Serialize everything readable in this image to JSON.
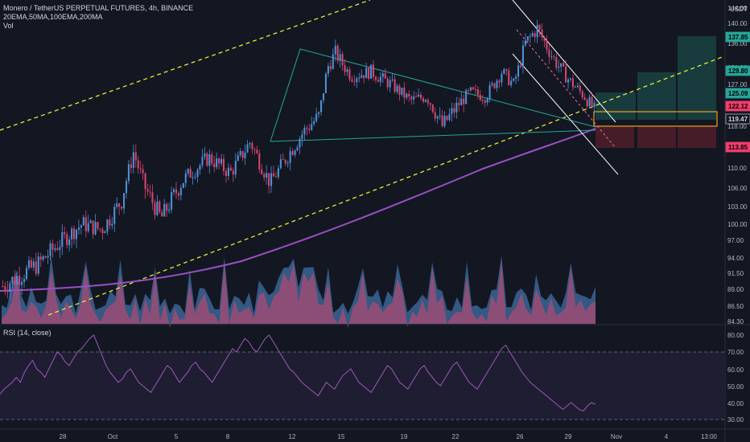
{
  "header": {
    "title": "Monero / TetherUS PERPETUAL FUTURES, 4h, BINANCE",
    "indicators": "20EMA,50MA,100EMA,200MA",
    "volume_label": "Vol",
    "rsi_label": "RSI (14, close)",
    "currency": "USDT"
  },
  "colors": {
    "background": "#131722",
    "up": "#4f8fd6",
    "down": "#d6456e",
    "ma": "#9c4fc6",
    "channel_dashed": "#e8e83a",
    "triangle": "#26a69a",
    "descending_channel": "#ffffff",
    "rsi_line": "#9d5bb8",
    "target_box": "#f2a01c",
    "profit_zone": "#1e5b56",
    "loss_zone": "#5e1f2c"
  },
  "chart_data": [
    {
      "type": "candlestick",
      "name": "price",
      "y_ticks": [
        "144.00",
        "140.00",
        "136.00",
        "131.00",
        "127.00",
        "122.00",
        "118.00",
        "114.00",
        "110.00",
        "106.00",
        "103.00",
        "100.00",
        "97.00",
        "94.00",
        "91.50",
        "89.00",
        "86.50",
        "84.30"
      ],
      "x_ticks": [
        "28",
        "Oct",
        "5",
        "8",
        "12",
        "15",
        "19",
        "22",
        "26",
        "29",
        "Nov",
        "4",
        "13:00"
      ],
      "price_tags": [
        {
          "label": "137.85",
          "color": "#26a69a"
        },
        {
          "label": "129.80",
          "color": "#26a69a"
        },
        {
          "label": "125.09",
          "color": "#26a69a"
        },
        {
          "label": "122.12",
          "color": "#f23d6e"
        },
        {
          "label": "119.47",
          "color": "#131722"
        },
        {
          "label": "113.85",
          "color": "#f23d6e"
        }
      ],
      "ohlc_range": {
        "start_close": 89.5,
        "peak_1": 135.5,
        "peak_2": 140.2,
        "end_close": 119.47
      }
    },
    {
      "type": "area",
      "name": "Vol"
    },
    {
      "type": "line",
      "name": "RSI (14, close)",
      "y_ticks": [
        "80.00",
        "70.00",
        "60.00",
        "50.00",
        "40.00",
        "30.00"
      ],
      "ylim": [
        28,
        82
      ],
      "levels": [
        70,
        30
      ],
      "values": [
        45,
        48,
        50,
        52,
        55,
        52,
        58,
        62,
        65,
        60,
        58,
        55,
        60,
        65,
        70,
        68,
        64,
        62,
        66,
        70,
        72,
        75,
        78,
        80,
        74,
        68,
        62,
        58,
        55,
        52,
        54,
        58,
        60,
        56,
        52,
        50,
        48,
        46,
        50,
        54,
        58,
        62,
        60,
        56,
        52,
        55,
        58,
        62,
        64,
        60,
        58,
        55,
        52,
        56,
        60,
        64,
        68,
        72,
        70,
        74,
        78,
        76,
        72,
        70,
        74,
        78,
        80,
        76,
        72,
        68,
        64,
        60,
        58,
        55,
        52,
        50,
        48,
        46,
        44,
        48,
        52,
        50,
        48,
        52,
        56,
        58,
        60,
        56,
        52,
        50,
        48,
        46,
        50,
        54,
        58,
        62,
        60,
        56,
        52,
        50,
        48,
        52,
        56,
        60,
        62,
        58,
        55,
        52,
        50,
        54,
        58,
        62,
        64,
        60,
        56,
        52,
        50,
        48,
        52,
        56,
        60,
        64,
        68,
        72,
        74,
        70,
        66,
        62,
        58,
        55,
        52,
        50,
        48,
        46,
        44,
        42,
        40,
        38,
        36,
        38,
        40,
        38,
        36,
        35,
        38,
        40,
        39
      ]
    }
  ]
}
